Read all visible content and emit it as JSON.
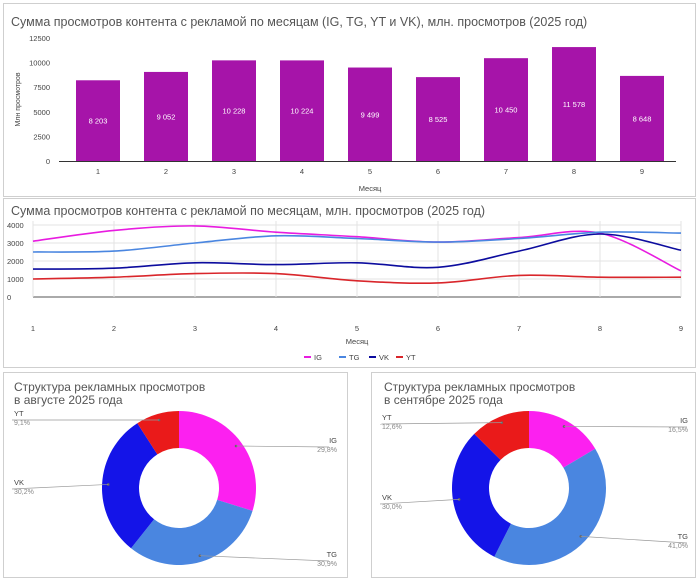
{
  "chart_data": [
    {
      "type": "bar",
      "title": "Сумма просмотров контента с рекламой по месяцам (IG, TG, YT и VK), млн. просмотров (2025 год)",
      "xlabel": "Месяц",
      "ylabel": "Млн просмотров",
      "categories": [
        "1",
        "2",
        "3",
        "4",
        "5",
        "6",
        "7",
        "8",
        "9"
      ],
      "values": [
        8203,
        9052,
        10228,
        10224,
        9499,
        8525,
        10450,
        11578,
        8648
      ],
      "value_labels": [
        "8 203",
        "9 052",
        "10 228",
        "10 224",
        "9 499",
        "8 525",
        "10 450",
        "11 578",
        "8 648"
      ],
      "ylim": [
        0,
        12500
      ],
      "yticks": [
        0,
        2500,
        5000,
        7500,
        10000,
        12500
      ],
      "color": "#a614a9"
    },
    {
      "type": "line",
      "title": "Сумма просмотров контента с рекламой по месяцам, млн. просмотров (2025 год)",
      "xlabel": "Месяц",
      "x": [
        1,
        2,
        3,
        4,
        5,
        6,
        7,
        8,
        9
      ],
      "ylim": [
        0,
        4000
      ],
      "yticks": [
        0,
        1000,
        2000,
        3000,
        4000
      ],
      "series": [
        {
          "name": "IG",
          "color": "#e81ce0",
          "values": [
            3100,
            3700,
            3950,
            3600,
            3350,
            3050,
            3300,
            3550,
            1450
          ]
        },
        {
          "name": "TG",
          "color": "#4a86e0",
          "values": [
            2500,
            2550,
            3000,
            3400,
            3250,
            3050,
            3250,
            3600,
            3550
          ]
        },
        {
          "name": "VK",
          "color": "#0c0c9e",
          "values": [
            1550,
            1600,
            1900,
            1800,
            1900,
            1650,
            2550,
            3500,
            2600
          ]
        },
        {
          "name": "YT",
          "color": "#d9262b",
          "values": [
            1000,
            1100,
            1300,
            1300,
            900,
            780,
            1200,
            1100,
            1100
          ]
        }
      ]
    },
    {
      "type": "pie",
      "title_line1": "Структура рекламных просмотров",
      "title_line2": "в августе 2025 года",
      "slices": [
        {
          "name": "IG",
          "value": 29.8,
          "pct": "29,8%",
          "color": "#fc20f0"
        },
        {
          "name": "TG",
          "value": 30.9,
          "pct": "30,9%",
          "color": "#4a86e0"
        },
        {
          "name": "VK",
          "value": 30.2,
          "pct": "30,2%",
          "color": "#1414e8"
        },
        {
          "name": "YT",
          "value": 9.1,
          "pct": "9,1%",
          "color": "#ea1a1a"
        }
      ]
    },
    {
      "type": "pie",
      "title_line1": "Структура рекламных просмотров",
      "title_line2": "в сентябре 2025 года",
      "slices": [
        {
          "name": "IG",
          "value": 16.5,
          "pct": "16,5%",
          "color": "#fc20f0"
        },
        {
          "name": "TG",
          "value": 41.0,
          "pct": "41,0%",
          "color": "#4a86e0"
        },
        {
          "name": "VK",
          "value": 30.0,
          "pct": "30,0%",
          "color": "#1414e8"
        },
        {
          "name": "YT",
          "value": 12.6,
          "pct": "12,6%",
          "color": "#ea1a1a"
        }
      ]
    }
  ]
}
